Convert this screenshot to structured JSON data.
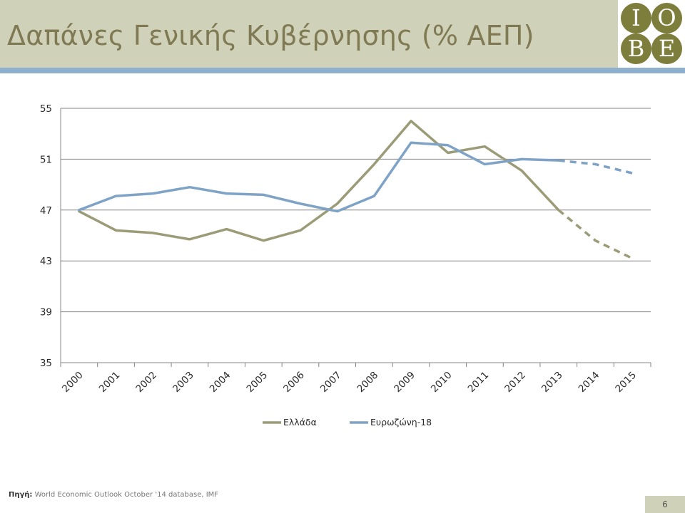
{
  "slide": {
    "title": "Δαπάνες Γενικής Κυβέρνησης (% ΑΕΠ)",
    "logo": {
      "letters": [
        "I",
        "O",
        "B",
        "E"
      ],
      "color": "#7d7d3c"
    },
    "source_label": "Πηγή:",
    "source_text": "World Economic Outlook October '14 database, IMF",
    "page_number": "6"
  },
  "chart_data": {
    "type": "line",
    "title": "",
    "xlabel": "",
    "ylabel": "",
    "categories": [
      "2000",
      "2001",
      "2002",
      "2003",
      "2004",
      "2005",
      "2006",
      "2007",
      "2008",
      "2009",
      "2010",
      "2011",
      "2012",
      "2013",
      "2014",
      "2015"
    ],
    "y_ticks": [
      "55",
      "51",
      "47",
      "43",
      "39",
      "35"
    ],
    "ylim": [
      35,
      55
    ],
    "grid": true,
    "legend_position": "bottom",
    "projection_from_index": 13,
    "series": [
      {
        "name": "Ελλάδα",
        "color": "#9b9b77",
        "values": [
          46.9,
          45.4,
          45.2,
          44.7,
          45.5,
          44.6,
          45.4,
          47.5,
          50.6,
          54.0,
          51.5,
          52.0,
          50.1,
          47.0,
          44.6,
          43.2
        ]
      },
      {
        "name": "Ευρωζώνη-18",
        "color": "#7ea3c6",
        "values": [
          47.0,
          48.1,
          48.3,
          48.8,
          48.3,
          48.2,
          47.5,
          46.9,
          48.1,
          52.3,
          52.1,
          50.6,
          51.0,
          50.9,
          50.6,
          49.9
        ]
      }
    ]
  }
}
